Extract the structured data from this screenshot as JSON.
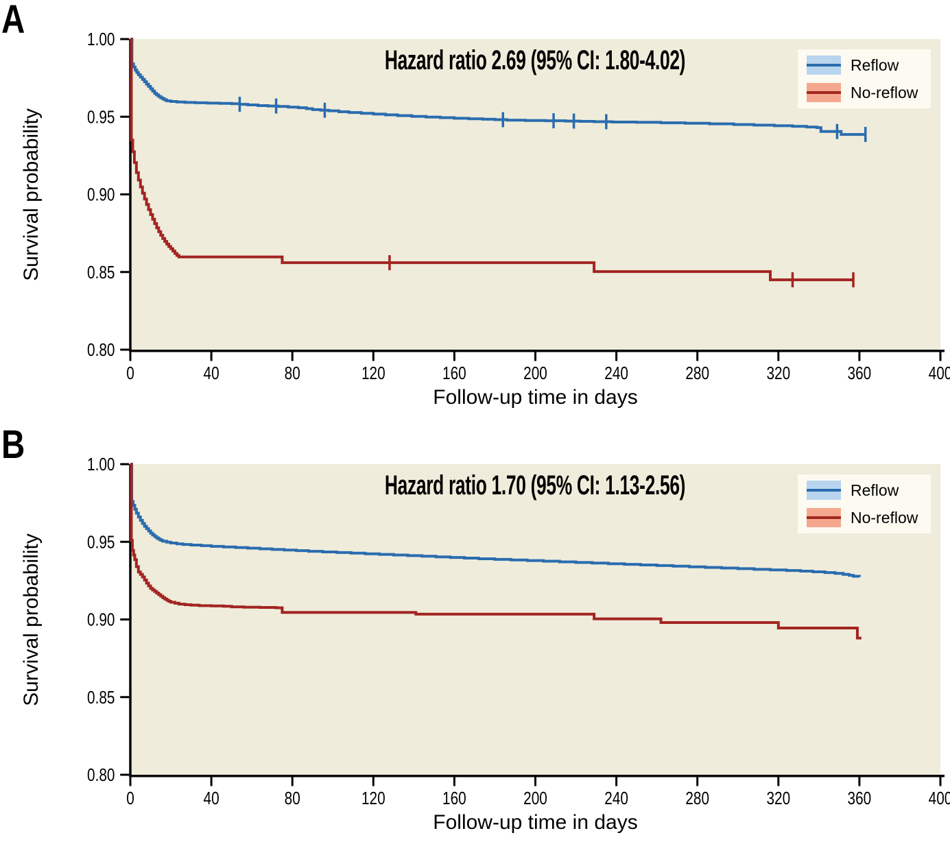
{
  "figure": {
    "background_color": "#ffffff",
    "plot_background_color": "#efecdb",
    "axis_color": "#000000",
    "legend_background_color": "#fcfaf1"
  },
  "chart_data": [
    {
      "type": "line",
      "subtype": "kaplan-meier-step",
      "panel_label": "A",
      "title": "Hazard ratio 2.69 (95% CI: 1.80-4.02)",
      "hazard_ratio": "2.69",
      "ci_95": "1.80-4.02",
      "xlabel": "Follow-up time in days",
      "ylabel": "Survival probability",
      "xlim": [
        0,
        400
      ],
      "ylim": [
        0.8,
        1.0
      ],
      "x_ticks": [
        0,
        40,
        80,
        120,
        160,
        200,
        240,
        280,
        320,
        360,
        400
      ],
      "y_ticks": [
        1.0,
        0.95,
        0.9,
        0.85,
        0.8
      ],
      "y_tick_labels": [
        "1.00",
        "0.95",
        "0.90",
        "0.85",
        "0.80"
      ],
      "grid": false,
      "legend_position": "top-right",
      "series": [
        {
          "name": "Reflow",
          "color": "#2a6cae",
          "legend_fill": "#b8d4ef",
          "points": [
            [
              0,
              1.0
            ],
            [
              0.8,
              0.984
            ],
            [
              1.6,
              0.982
            ],
            [
              2.4,
              0.98
            ],
            [
              3.2,
              0.9785
            ],
            [
              4,
              0.977
            ],
            [
              5,
              0.9755
            ],
            [
              6,
              0.974
            ],
            [
              7,
              0.9725
            ],
            [
              8,
              0.971
            ],
            [
              9,
              0.9695
            ],
            [
              10,
              0.968
            ],
            [
              11,
              0.9665
            ],
            [
              12,
              0.965
            ],
            [
              13,
              0.964
            ],
            [
              14,
              0.963
            ],
            [
              15,
              0.9622
            ],
            [
              16,
              0.9615
            ],
            [
              17,
              0.9608
            ],
            [
              18,
              0.9602
            ],
            [
              20,
              0.9598
            ],
            [
              23,
              0.9595
            ],
            [
              27,
              0.9592
            ],
            [
              32,
              0.959
            ],
            [
              38,
              0.9588
            ],
            [
              44,
              0.9586
            ],
            [
              50,
              0.9584
            ],
            [
              54,
              0.958
            ],
            [
              58,
              0.9576
            ],
            [
              63,
              0.9572
            ],
            [
              68,
              0.9569
            ],
            [
              73,
              0.9566
            ],
            [
              78,
              0.9562
            ],
            [
              83,
              0.9558
            ],
            [
              87,
              0.9552
            ],
            [
              90,
              0.9546
            ],
            [
              94,
              0.9542
            ],
            [
              98,
              0.9538
            ],
            [
              103,
              0.9532
            ],
            [
              108,
              0.9527
            ],
            [
              114,
              0.9522
            ],
            [
              120,
              0.9517
            ],
            [
              126,
              0.9512
            ],
            [
              132,
              0.9507
            ],
            [
              139,
              0.9502
            ],
            [
              146,
              0.9498
            ],
            [
              153,
              0.9494
            ],
            [
              160,
              0.949
            ],
            [
              167,
              0.9487
            ],
            [
              174,
              0.9484
            ],
            [
              180,
              0.9481
            ],
            [
              186,
              0.9478
            ],
            [
              195,
              0.9476
            ],
            [
              205,
              0.9474
            ],
            [
              215,
              0.9472
            ],
            [
              222,
              0.947
            ],
            [
              229,
              0.9468
            ],
            [
              238,
              0.9466
            ],
            [
              250,
              0.9464
            ],
            [
              262,
              0.9461
            ],
            [
              274,
              0.9458
            ],
            [
              286,
              0.9454
            ],
            [
              298,
              0.945
            ],
            [
              308,
              0.9446
            ],
            [
              318,
              0.9442
            ],
            [
              327,
              0.9438
            ],
            [
              334,
              0.9434
            ],
            [
              339,
              0.943
            ],
            [
              341,
              0.9405
            ],
            [
              351,
              0.9386
            ],
            [
              363,
              0.9386
            ]
          ],
          "censor_times": [
            54,
            72,
            96,
            184,
            209,
            219,
            235,
            349,
            363
          ]
        },
        {
          "name": "No-reflow",
          "color": "#a32521",
          "legend_fill": "#f5a78e",
          "points": [
            [
              0,
              1.0
            ],
            [
              0.5,
              0.935
            ],
            [
              1.2,
              0.9275
            ],
            [
              2,
              0.9205
            ],
            [
              3,
              0.914
            ],
            [
              4,
              0.9092
            ],
            [
              5,
              0.9048
            ],
            [
              6,
              0.9008
            ],
            [
              7,
              0.897
            ],
            [
              8,
              0.8935
            ],
            [
              9,
              0.8902
            ],
            [
              10,
              0.887
            ],
            [
              11,
              0.884
            ],
            [
              12,
              0.8812
            ],
            [
              13,
              0.8785
            ],
            [
              14,
              0.876
            ],
            [
              15,
              0.8737
            ],
            [
              16,
              0.8716
            ],
            [
              17,
              0.8697
            ],
            [
              18,
              0.868
            ],
            [
              19,
              0.8664
            ],
            [
              20,
              0.865
            ],
            [
              21,
              0.8635
            ],
            [
              22,
              0.862
            ],
            [
              23,
              0.8607
            ],
            [
              24,
              0.8597
            ],
            [
              75,
              0.856
            ],
            [
              229,
              0.8503
            ],
            [
              316,
              0.845
            ],
            [
              357,
              0.845
            ]
          ],
          "censor_times": [
            128,
            327,
            357
          ]
        }
      ]
    },
    {
      "type": "line",
      "subtype": "kaplan-meier-step",
      "panel_label": "B",
      "title": "Hazard ratio 1.70 (95% CI: 1.13-2.56)",
      "hazard_ratio": "1.70",
      "ci_95": "1.13-2.56",
      "xlabel": "Follow-up time in days",
      "ylabel": "Survival probability",
      "xlim": [
        0,
        400
      ],
      "ylim": [
        0.8,
        1.0
      ],
      "x_ticks": [
        0,
        40,
        80,
        120,
        160,
        200,
        240,
        280,
        320,
        360,
        400
      ],
      "y_ticks": [
        1.0,
        0.95,
        0.9,
        0.85,
        0.8
      ],
      "y_tick_labels": [
        "1.00",
        "0.95",
        "0.90",
        "0.85",
        "0.80"
      ],
      "grid": false,
      "legend_position": "top-right",
      "series": [
        {
          "name": "Reflow",
          "color": "#2a6cae",
          "legend_fill": "#b8d4ef",
          "points": [
            [
              0,
              1.0
            ],
            [
              0.7,
              0.976
            ],
            [
              1.4,
              0.9735
            ],
            [
              2.2,
              0.971
            ],
            [
              3,
              0.9685
            ],
            [
              4,
              0.966
            ],
            [
              5,
              0.9638
            ],
            [
              6,
              0.9618
            ],
            [
              7,
              0.96
            ],
            [
              8,
              0.9585
            ],
            [
              9,
              0.957
            ],
            [
              10,
              0.9556
            ],
            [
              11,
              0.9544
            ],
            [
              12,
              0.9534
            ],
            [
              13,
              0.9525
            ],
            [
              14,
              0.9517
            ],
            [
              15,
              0.951
            ],
            [
              16,
              0.9504
            ],
            [
              18,
              0.9498
            ],
            [
              20,
              0.9492
            ],
            [
              23,
              0.9487
            ],
            [
              26,
              0.9483
            ],
            [
              30,
              0.9479
            ],
            [
              35,
              0.9475
            ],
            [
              40,
              0.9471
            ],
            [
              46,
              0.9467
            ],
            [
              52,
              0.9463
            ],
            [
              58,
              0.9459
            ],
            [
              64,
              0.9455
            ],
            [
              70,
              0.9451
            ],
            [
              76,
              0.9447
            ],
            [
              82,
              0.9443
            ],
            [
              88,
              0.9439
            ],
            [
              95,
              0.9435
            ],
            [
              102,
              0.9431
            ],
            [
              109,
              0.9427
            ],
            [
              116,
              0.9423
            ],
            [
              123,
              0.9419
            ],
            [
              130,
              0.9415
            ],
            [
              137,
              0.9411
            ],
            [
              144,
              0.9407
            ],
            [
              151,
              0.9403
            ],
            [
              158,
              0.9399
            ],
            [
              165,
              0.9395
            ],
            [
              172,
              0.9391
            ],
            [
              180,
              0.9387
            ],
            [
              188,
              0.9383
            ],
            [
              196,
              0.9379
            ],
            [
              204,
              0.9375
            ],
            [
              212,
              0.9371
            ],
            [
              220,
              0.9367
            ],
            [
              228,
              0.9363
            ],
            [
              236,
              0.9359
            ],
            [
              244,
              0.9355
            ],
            [
              252,
              0.9351
            ],
            [
              260,
              0.9347
            ],
            [
              268,
              0.9343
            ],
            [
              276,
              0.9339
            ],
            [
              284,
              0.9335
            ],
            [
              292,
              0.9331
            ],
            [
              300,
              0.9327
            ],
            [
              308,
              0.9323
            ],
            [
              316,
              0.9319
            ],
            [
              324,
              0.9315
            ],
            [
              331,
              0.9311
            ],
            [
              337,
              0.9307
            ],
            [
              343,
              0.9302
            ],
            [
              348,
              0.9297
            ],
            [
              352,
              0.929
            ],
            [
              355,
              0.9284
            ],
            [
              357,
              0.9278
            ],
            [
              360,
              0.9274
            ]
          ],
          "censor_times": []
        },
        {
          "name": "No-reflow",
          "color": "#a32521",
          "legend_fill": "#f5a78e",
          "points": [
            [
              0,
              1.0
            ],
            [
              0.5,
              0.951
            ],
            [
              1,
              0.9445
            ],
            [
              1.6,
              0.9415
            ],
            [
              2.2,
              0.9385
            ],
            [
              3,
              0.934
            ],
            [
              4,
              0.9306
            ],
            [
              5,
              0.929
            ],
            [
              6,
              0.9274
            ],
            [
              7,
              0.9254
            ],
            [
              8,
              0.9234
            ],
            [
              9,
              0.9216
            ],
            [
              10,
              0.92
            ],
            [
              11,
              0.919
            ],
            [
              12,
              0.918
            ],
            [
              13,
              0.917
            ],
            [
              14,
              0.916
            ],
            [
              15,
              0.915
            ],
            [
              16,
              0.914
            ],
            [
              17,
              0.9132
            ],
            [
              18,
              0.9124
            ],
            [
              19,
              0.9117
            ],
            [
              20,
              0.9111
            ],
            [
              22,
              0.9105
            ],
            [
              24,
              0.9099
            ],
            [
              27,
              0.9095
            ],
            [
              30,
              0.9092
            ],
            [
              34,
              0.9089
            ],
            [
              40,
              0.9087
            ],
            [
              46,
              0.9085
            ],
            [
              50,
              0.9081
            ],
            [
              56,
              0.9079
            ],
            [
              64,
              0.9077
            ],
            [
              72,
              0.9075
            ],
            [
              75,
              0.9045
            ],
            [
              141,
              0.9034
            ],
            [
              229,
              0.9004
            ],
            [
              262,
              0.898
            ],
            [
              320,
              0.8945
            ],
            [
              359,
              0.888
            ],
            [
              361,
              0.888
            ]
          ],
          "censor_times": []
        }
      ]
    }
  ]
}
